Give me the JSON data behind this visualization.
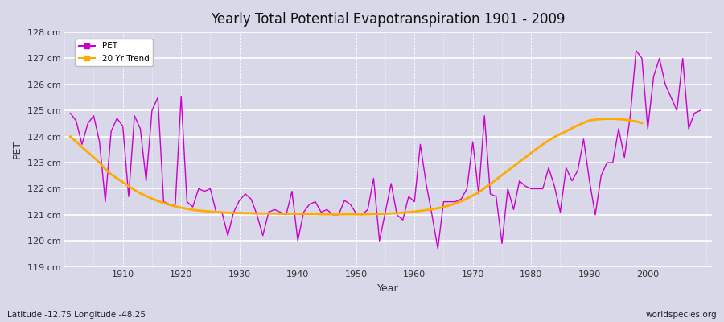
{
  "title": "Yearly Total Potential Evapotranspiration 1901 - 2009",
  "xlabel": "Year",
  "ylabel": "PET",
  "lat_lon_label": "Latitude -12.75 Longitude -48.25",
  "watermark": "worldspecies.org",
  "bg_color": "#d8d8e8",
  "plot_bg_color": "#d8d8e8",
  "pet_color": "#cc00cc",
  "trend_color": "#ffaa00",
  "ylim": [
    119,
    128
  ],
  "ytick_labels": [
    "119 cm",
    "120 cm",
    "121 cm",
    "122 cm",
    "123 cm",
    "124 cm",
    "125 cm",
    "126 cm",
    "127 cm",
    "128 cm"
  ],
  "ytick_values": [
    119,
    120,
    121,
    122,
    123,
    124,
    125,
    126,
    127,
    128
  ],
  "years": [
    1901,
    1902,
    1903,
    1904,
    1905,
    1906,
    1907,
    1908,
    1909,
    1910,
    1911,
    1912,
    1913,
    1914,
    1915,
    1916,
    1917,
    1918,
    1919,
    1920,
    1921,
    1922,
    1923,
    1924,
    1925,
    1926,
    1927,
    1928,
    1929,
    1930,
    1931,
    1932,
    1933,
    1934,
    1935,
    1936,
    1937,
    1938,
    1939,
    1940,
    1941,
    1942,
    1943,
    1944,
    1945,
    1946,
    1947,
    1948,
    1949,
    1950,
    1951,
    1952,
    1953,
    1954,
    1955,
    1956,
    1957,
    1958,
    1959,
    1960,
    1961,
    1962,
    1963,
    1964,
    1965,
    1966,
    1967,
    1968,
    1969,
    1970,
    1971,
    1972,
    1973,
    1974,
    1975,
    1976,
    1977,
    1978,
    1979,
    1980,
    1981,
    1982,
    1983,
    1984,
    1985,
    1986,
    1987,
    1988,
    1989,
    1990,
    1991,
    1992,
    1993,
    1994,
    1995,
    1996,
    1997,
    1998,
    1999,
    2000,
    2001,
    2002,
    2003,
    2004,
    2005,
    2006,
    2007,
    2008,
    2009
  ],
  "pet_values": [
    124.9,
    124.6,
    123.7,
    124.5,
    124.8,
    123.8,
    121.5,
    124.2,
    124.7,
    124.4,
    121.7,
    124.8,
    124.3,
    122.3,
    125.0,
    125.5,
    121.5,
    121.4,
    121.4,
    125.55,
    121.5,
    121.3,
    122.0,
    121.9,
    122.0,
    121.1,
    121.1,
    120.2,
    121.1,
    121.55,
    121.8,
    121.6,
    121.0,
    120.2,
    121.1,
    121.2,
    121.1,
    121.0,
    121.9,
    120.0,
    121.1,
    121.4,
    121.5,
    121.1,
    121.2,
    121.0,
    121.0,
    121.55,
    121.4,
    121.05,
    121.0,
    121.2,
    122.4,
    120.0,
    121.1,
    122.2,
    121.0,
    120.8,
    121.7,
    121.5,
    123.7,
    122.2,
    121.0,
    119.7,
    121.5,
    121.5,
    121.5,
    121.6,
    122.0,
    123.8,
    121.8,
    124.8,
    121.8,
    121.7,
    119.9,
    122.0,
    121.2,
    122.3,
    122.1,
    122.0,
    122.0,
    122.0,
    122.8,
    122.1,
    121.1,
    122.8,
    122.3,
    122.7,
    123.9,
    122.3,
    121.0,
    122.5,
    123.0,
    123.0,
    124.3,
    123.2,
    124.8,
    127.3,
    127.0,
    124.3,
    126.3,
    127.0,
    126.0,
    125.5,
    125.0,
    127.0,
    124.3,
    124.9,
    125.0
  ],
  "trend_values": [
    124.0,
    123.8,
    123.6,
    123.4,
    123.2,
    123.0,
    122.75,
    122.55,
    122.4,
    122.25,
    122.1,
    121.95,
    121.82,
    121.72,
    121.62,
    121.53,
    121.45,
    121.38,
    121.32,
    121.27,
    121.23,
    121.19,
    121.16,
    121.14,
    121.12,
    121.1,
    121.09,
    121.08,
    121.07,
    121.07,
    121.06,
    121.06,
    121.05,
    121.05,
    121.05,
    121.05,
    121.04,
    121.04,
    121.04,
    121.03,
    121.03,
    121.03,
    121.03,
    121.02,
    121.02,
    121.02,
    121.02,
    121.02,
    121.02,
    121.02,
    121.02,
    121.02,
    121.03,
    121.03,
    121.04,
    121.05,
    121.06,
    121.08,
    121.1,
    121.12,
    121.15,
    121.18,
    121.21,
    121.25,
    121.3,
    121.36,
    121.43,
    121.52,
    121.62,
    121.74,
    121.87,
    122.02,
    122.18,
    122.35,
    122.52,
    122.69,
    122.86,
    123.03,
    123.2,
    123.37,
    123.54,
    123.7,
    123.85,
    123.98,
    124.1,
    124.2,
    124.32,
    124.43,
    124.53,
    124.62,
    124.65,
    124.67,
    124.68,
    124.68,
    124.67,
    124.65,
    124.62,
    124.58,
    124.52
  ],
  "legend_pet_label": "PET",
  "legend_trend_label": "20 Yr Trend"
}
